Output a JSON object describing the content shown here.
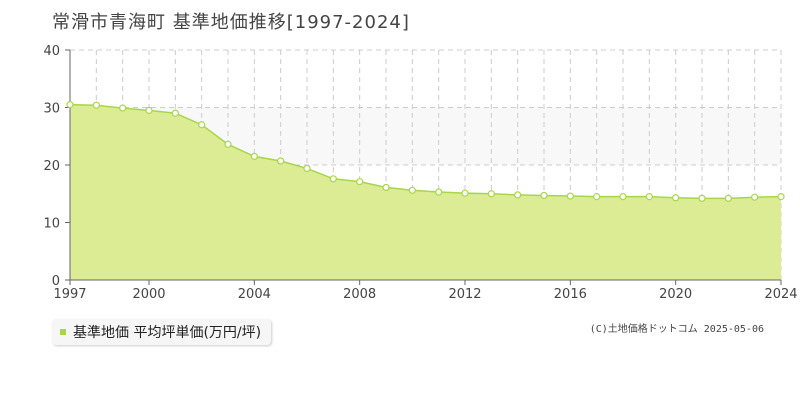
{
  "title": "常滑市青海町 基準地価推移[1997-2024]",
  "legend": {
    "label": "基準地価 平均坪単価(万円/坪)"
  },
  "credit": "(C)土地価格ドットコム 2025-05-06",
  "colors": {
    "area_fill": "#dbec94",
    "line": "#a8d64a",
    "band": "#f8f8f8",
    "grid": "#cccccc",
    "axis": "#666666"
  },
  "chart_data": {
    "type": "area",
    "x": [
      1997,
      1998,
      1999,
      2000,
      2001,
      2002,
      2003,
      2004,
      2005,
      2006,
      2007,
      2008,
      2009,
      2010,
      2011,
      2012,
      2013,
      2014,
      2015,
      2016,
      2017,
      2018,
      2019,
      2020,
      2021,
      2022,
      2023,
      2024
    ],
    "series": [
      {
        "name": "基準地価 平均坪単価(万円/坪)",
        "values": [
          30.5,
          30.4,
          29.9,
          29.5,
          29.0,
          27.0,
          23.6,
          21.5,
          20.7,
          19.4,
          17.6,
          17.1,
          16.1,
          15.6,
          15.3,
          15.1,
          15.0,
          14.8,
          14.7,
          14.6,
          14.5,
          14.5,
          14.5,
          14.3,
          14.2,
          14.2,
          14.4,
          14.5
        ]
      }
    ],
    "xlim": [
      1997,
      2024
    ],
    "ylim": [
      0,
      40
    ],
    "yticks": [
      0,
      10,
      20,
      30,
      40
    ],
    "xticks": [
      1997,
      2000,
      2004,
      2008,
      2012,
      2016,
      2020,
      2024
    ],
    "grid": true
  }
}
